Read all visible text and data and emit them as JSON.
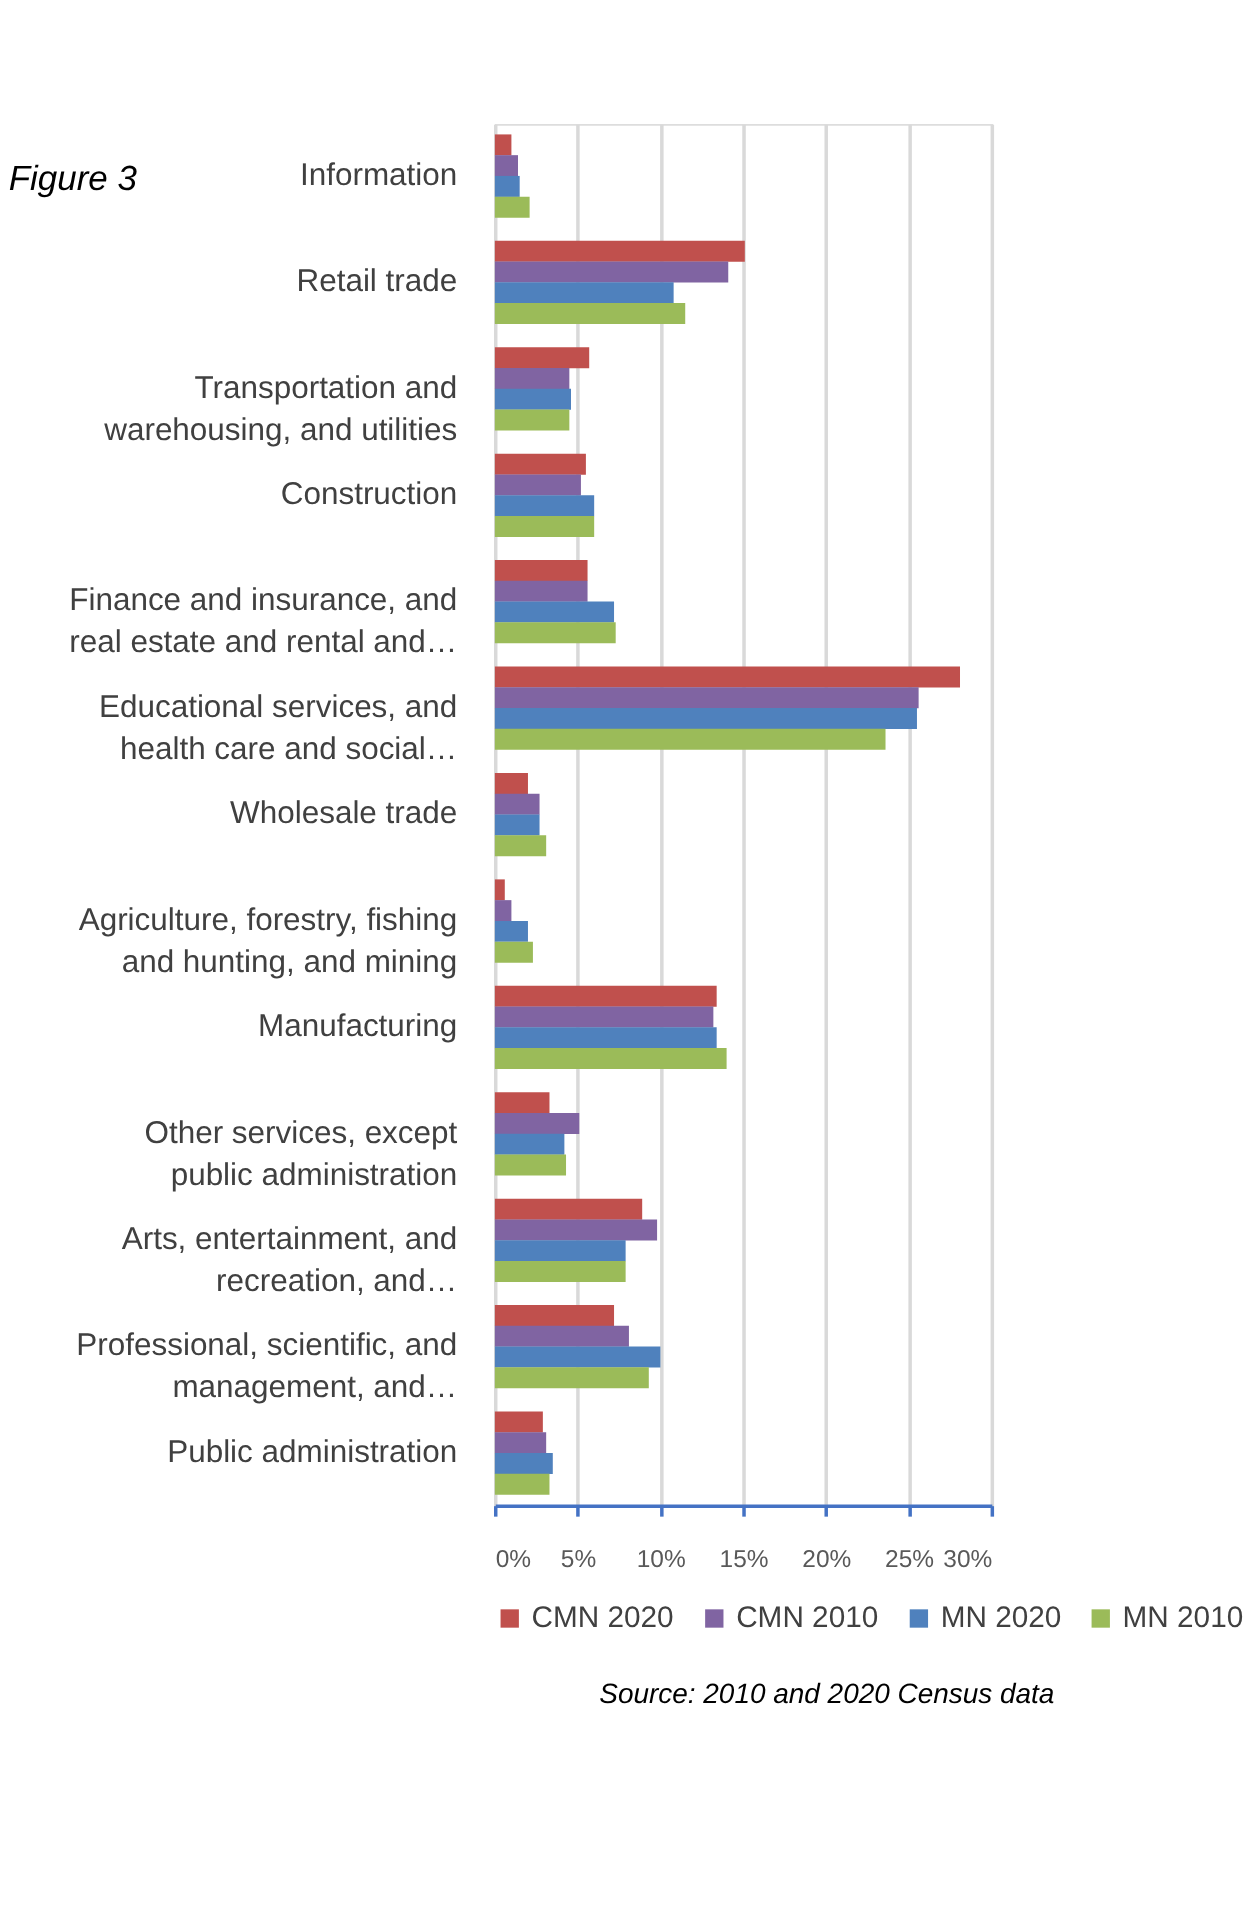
{
  "chart_data": {
    "type": "bar",
    "orientation": "horizontal",
    "title": "Figure 3",
    "categories": [
      "Information",
      "Retail trade",
      "Transportation and\nwarehousing, and utilities",
      "Construction",
      "Finance and insurance, and\nreal estate and rental and…",
      "Educational services, and\nhealth care and social…",
      "Wholesale trade",
      "Agriculture, forestry, fishing\nand hunting, and mining",
      "Manufacturing",
      "Other services, except\npublic administration",
      "Arts, entertainment, and\nrecreation, and…",
      "Professional, scientific, and\nmanagement, and…",
      "Public administration"
    ],
    "series": [
      {
        "name": "CMN 2020",
        "color": "#c0504d",
        "values": [
          1.0,
          15.1,
          5.7,
          5.5,
          5.6,
          28.1,
          2.0,
          0.6,
          13.4,
          3.3,
          8.9,
          7.2,
          2.9
        ]
      },
      {
        "name": "CMN 2010",
        "color": "#8064a2",
        "values": [
          1.4,
          14.1,
          4.5,
          5.2,
          5.6,
          25.6,
          2.7,
          1.0,
          13.2,
          5.1,
          9.8,
          8.1,
          3.1
        ]
      },
      {
        "name": "MN 2020",
        "color": "#4f81bd",
        "values": [
          1.5,
          10.8,
          4.6,
          6.0,
          7.2,
          25.5,
          2.7,
          2.0,
          13.4,
          4.2,
          7.9,
          10.0,
          3.5
        ]
      },
      {
        "name": "MN 2010",
        "color": "#9bbb59",
        "values": [
          2.1,
          11.5,
          4.5,
          6.0,
          7.3,
          23.6,
          3.1,
          2.3,
          14.0,
          4.3,
          7.9,
          9.3,
          3.3
        ]
      }
    ],
    "xlim": [
      0,
      30
    ],
    "xticks": [
      {
        "value": 0,
        "label": "0%"
      },
      {
        "value": 5,
        "label": "5%"
      },
      {
        "value": 10,
        "label": "10%"
      },
      {
        "value": 15,
        "label": "15%"
      },
      {
        "value": 20,
        "label": "20%"
      },
      {
        "value": 25,
        "label": "25%"
      },
      {
        "value": 30,
        "label": "30%"
      }
    ],
    "grid": "x",
    "legend": "bottom",
    "annotations": [
      "Source: 2010 and 2020 Census data"
    ]
  }
}
